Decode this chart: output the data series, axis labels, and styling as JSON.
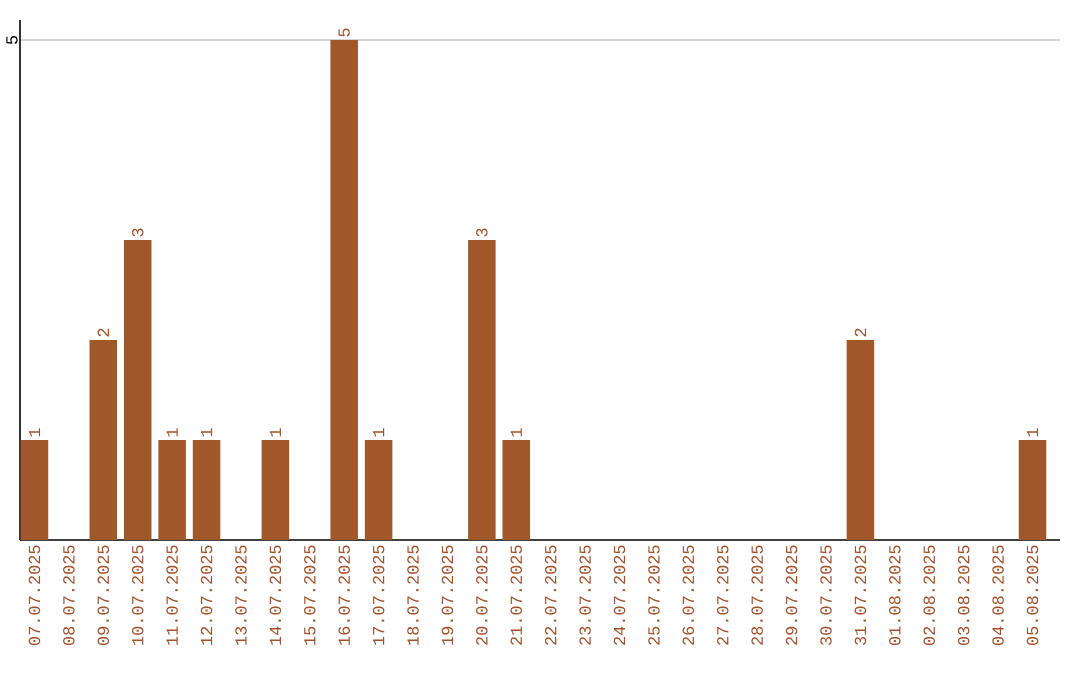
{
  "chart_data": {
    "type": "bar",
    "categories": [
      "07.07.2025",
      "08.07.2025",
      "09.07.2025",
      "10.07.2025",
      "11.07.2025",
      "12.07.2025",
      "13.07.2025",
      "14.07.2025",
      "15.07.2025",
      "16.07.2025",
      "17.07.2025",
      "18.07.2025",
      "19.07.2025",
      "20.07.2025",
      "21.07.2025",
      "22.07.2025",
      "23.07.2025",
      "24.07.2025",
      "25.07.2025",
      "26.07.2025",
      "27.07.2025",
      "28.07.2025",
      "29.07.2025",
      "30.07.2025",
      "31.07.2025",
      "01.08.2025",
      "02.08.2025",
      "03.08.2025",
      "04.08.2025",
      "05.08.2025"
    ],
    "values": [
      1,
      0,
      2,
      3,
      1,
      1,
      0,
      1,
      0,
      5,
      1,
      0,
      0,
      3,
      1,
      0,
      0,
      0,
      0,
      0,
      0,
      0,
      0,
      0,
      2,
      0,
      0,
      0,
      0,
      1
    ],
    "value_labels": [
      "1",
      null,
      "2",
      "3",
      "1",
      "1",
      null,
      "1",
      null,
      "5",
      "1",
      null,
      null,
      "3",
      "1",
      null,
      null,
      null,
      null,
      null,
      null,
      null,
      null,
      null,
      "2",
      null,
      null,
      null,
      null,
      "1"
    ],
    "color": "#a0582a",
    "ylim": [
      0,
      5.2
    ],
    "yticks": [
      5
    ],
    "grid": "y"
  }
}
